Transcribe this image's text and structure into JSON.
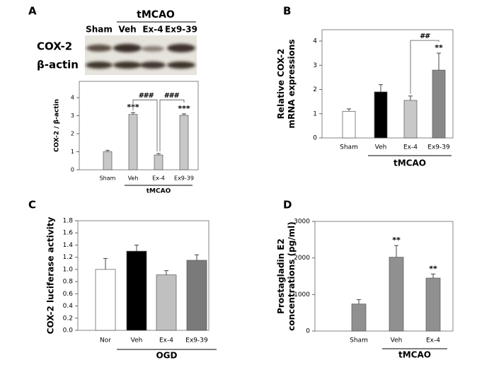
{
  "blot": {
    "panel_label": "A",
    "rows": [
      "COX-2",
      "β-actin"
    ],
    "lanes": [
      "Sham",
      "Veh",
      "Ex-4",
      "Ex9-39"
    ],
    "group_label": "tMCAO"
  },
  "chart_data": [
    {
      "type": "bar",
      "categories": [
        "Sham",
        "Veh",
        "Ex-4",
        "Ex9-39"
      ],
      "values": [
        1.0,
        3.07,
        0.82,
        3.02
      ],
      "errors": [
        0.08,
        0.1,
        0.08,
        0.08
      ],
      "colors": [
        "#c8c8c8",
        "#c8c8c8",
        "#c8c8c8",
        "#c8c8c8"
      ],
      "ylim": [
        0,
        4
      ],
      "yticks": [
        0,
        1,
        2,
        3,
        4
      ],
      "ylabel": [
        "COX-2 / β-actin"
      ],
      "group_label": "tMCAO",
      "significance": [
        null,
        "***",
        null,
        "***"
      ],
      "brackets": [
        {
          "text": "###",
          "between": [
            "Veh",
            "Ex-4"
          ]
        },
        {
          "text": "###",
          "between": [
            "Ex-4",
            "Ex9-39"
          ]
        }
      ]
    },
    {
      "type": "bar",
      "panel_label": "B",
      "categories": [
        "Sham",
        "Veh",
        "Ex-4",
        "Ex9-39"
      ],
      "values": [
        1.1,
        1.9,
        1.55,
        2.8
      ],
      "errors": [
        0.1,
        0.3,
        0.18,
        0.7
      ],
      "colors": [
        "#ffffff",
        "#000000",
        "#c8c8c8",
        "#888888"
      ],
      "ylim": [
        0,
        4
      ],
      "yticks": [
        0,
        1,
        2,
        3,
        4
      ],
      "ylabel": [
        "Relative COX-2",
        "mRNA expressions"
      ],
      "group_label": "tMCAO",
      "significance": [
        null,
        null,
        null,
        "**"
      ],
      "brackets": [
        {
          "text": "##",
          "between": [
            "Ex-4",
            "Ex9-39"
          ]
        }
      ]
    },
    {
      "type": "bar",
      "panel_label": "C",
      "categories": [
        "Nor",
        "Veh",
        "Ex-4",
        "Ex9-39"
      ],
      "values": [
        1.0,
        1.3,
        0.91,
        1.15
      ],
      "errors": [
        0.18,
        0.1,
        0.07,
        0.09
      ],
      "colors": [
        "#ffffff",
        "#000000",
        "#c0c0c0",
        "#7a7a7a"
      ],
      "ylim": [
        0,
        1.8
      ],
      "yticks": [
        {
          "value": 0,
          "label": "0.0"
        },
        0.2,
        0.4,
        0.6,
        0.8,
        {
          "value": 1,
          "label": "1.0"
        },
        1.2,
        1.4,
        1.6,
        1.8
      ],
      "ylabel": [
        "COX-2 luciferase activity"
      ],
      "group_label": "OGD"
    },
    {
      "type": "bar",
      "panel_label": "D",
      "categories": [
        "Sham",
        "Veh",
        "Ex-4"
      ],
      "values": [
        740,
        2020,
        1450
      ],
      "errors": [
        120,
        320,
        110
      ],
      "colors": [
        "#909090",
        "#909090",
        "#909090"
      ],
      "ylim": [
        0,
        3000
      ],
      "yticks": [
        0,
        1000,
        2000,
        3000
      ],
      "ylabel": [
        "Prostagladin E2",
        "concentrations (pg/ml)"
      ],
      "group_label": "tMCAO",
      "significance": [
        null,
        "**",
        "**"
      ]
    }
  ]
}
